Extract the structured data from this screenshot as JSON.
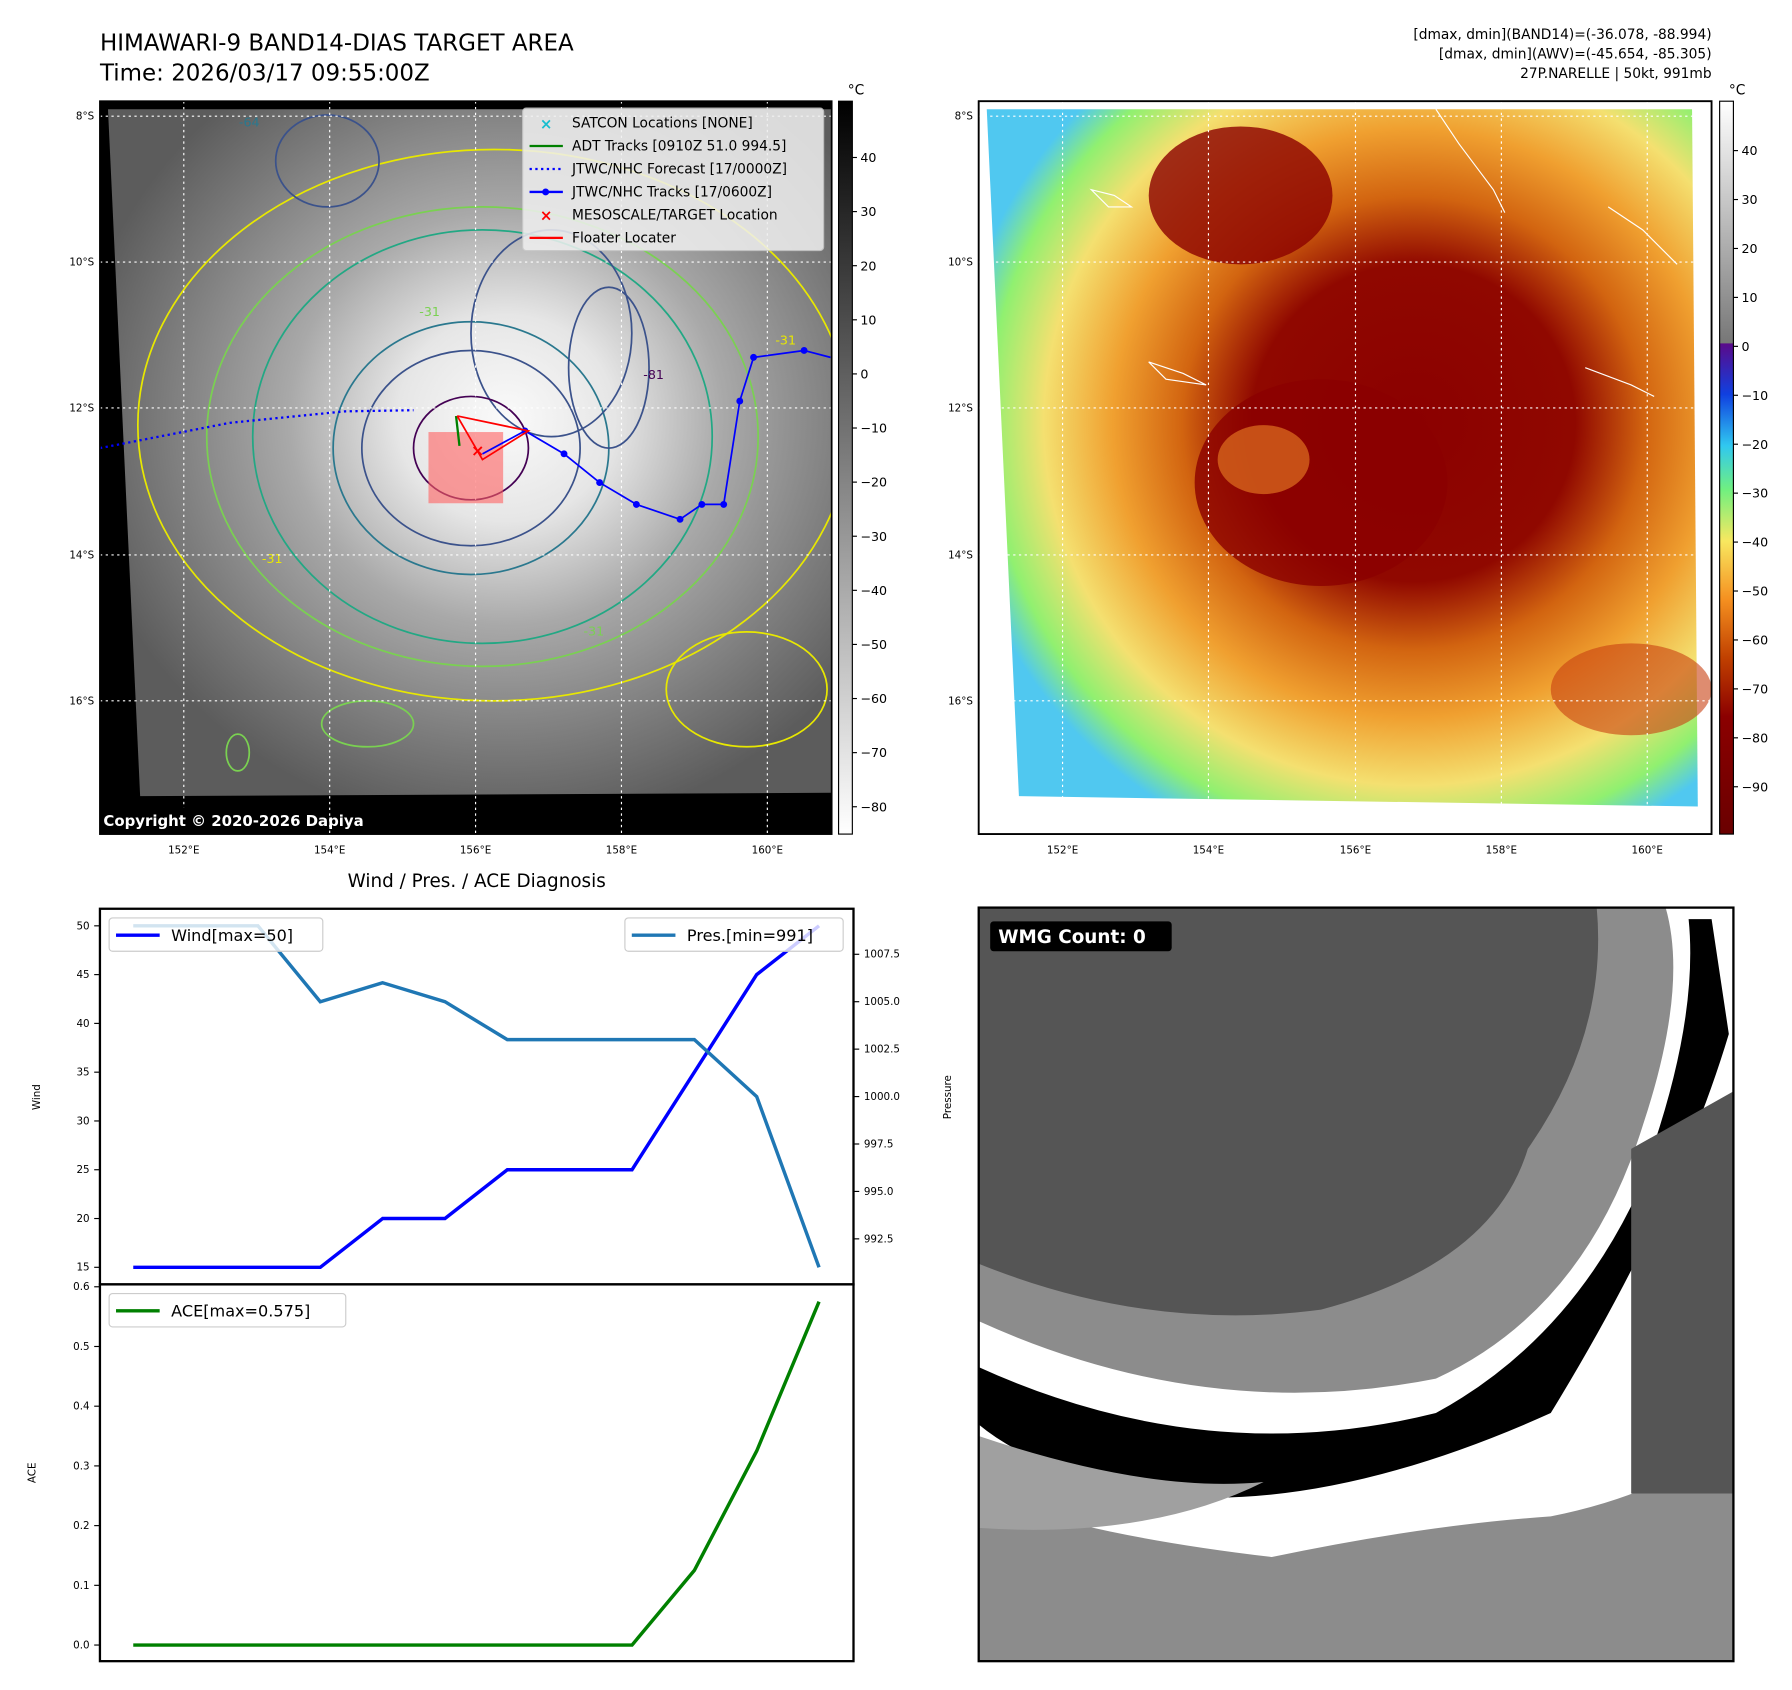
{
  "title": {
    "line1": "HIMAWARI-9 BAND14-DIAS TARGET AREA",
    "line2": "Time: 2026/03/17 09:55:00Z"
  },
  "info": {
    "line1": "[dmax, dmin](BAND14)=(-36.078, -88.994)",
    "line2": "[dmax, dmin](AWV)=(-45.654, -85.305)",
    "line3": "27P.NARELLE | 50kt, 991mb"
  },
  "map": {
    "lat_ticks": [
      "8°S",
      "10°S",
      "12°S",
      "14°S",
      "16°S"
    ],
    "lon_ticks": [
      "152°E",
      "154°E",
      "156°E",
      "158°E",
      "160°E"
    ],
    "copyright": "Copyright © 2020-2026 Dapiya",
    "contour_labels": [
      "-64",
      "-31",
      "-31",
      "-31",
      "-31",
      "-81"
    ],
    "legend": [
      {
        "label": "SATCON Locations [NONE]",
        "color": "#17becf",
        "marker": "x"
      },
      {
        "label": "ADT Tracks [0910Z 51.0 994.5]",
        "color": "#008000",
        "marker": "line"
      },
      {
        "label": "JTWC/NHC Forecast [17/0000Z]",
        "color": "#0000ff",
        "marker": "dotted"
      },
      {
        "label": "JTWC/NHC Tracks [17/0600Z]",
        "color": "#0000ff",
        "marker": "line-dot"
      },
      {
        "label": "MESOSCALE/TARGET Location",
        "color": "#ff0000",
        "marker": "x"
      },
      {
        "label": "Floater Locater",
        "color": "#ff0000",
        "marker": "line"
      }
    ]
  },
  "colorbar_left": {
    "unit": "°C",
    "ticks": [
      "40",
      "30",
      "20",
      "10",
      "0",
      "−10",
      "−20",
      "−30",
      "−40",
      "−50",
      "−60",
      "−70",
      "−80"
    ]
  },
  "colorbar_right": {
    "unit": "°C",
    "ticks": [
      "40",
      "30",
      "20",
      "10",
      "0",
      "−10",
      "−20",
      "−30",
      "−40",
      "−50",
      "−60",
      "−70",
      "−80",
      "−90"
    ]
  },
  "wmg": {
    "label": "WMG Count: 0"
  },
  "chart_data": [
    {
      "type": "line",
      "title": "Wind / Pres. / ACE Diagnosis",
      "x": [
        0,
        1,
        2,
        3,
        4,
        5,
        6,
        7,
        8,
        9,
        10,
        11
      ],
      "series": [
        {
          "name": "Wind[max=50]",
          "axis": "left",
          "color": "#0000ff",
          "values": [
            15,
            15,
            15,
            15,
            20,
            20,
            25,
            25,
            25,
            35,
            45,
            50
          ]
        },
        {
          "name": "Pres.[min=991]",
          "axis": "right",
          "color": "#1f77b4",
          "values": [
            1009,
            1009,
            1009,
            1005,
            1006,
            1005,
            1003,
            1003,
            1003,
            1003,
            1000,
            991
          ]
        }
      ],
      "ylabel": "Wind",
      "ylabel_right": "Pressure",
      "ylim": [
        13.25,
        51.75
      ],
      "ylim_right": [
        990.1,
        1009.9
      ],
      "yticks": [
        "15",
        "20",
        "25",
        "30",
        "35",
        "40",
        "45",
        "50"
      ],
      "yticks_right": [
        "992.5",
        "995.0",
        "997.5",
        "1000.0",
        "1002.5",
        "1005.0",
        "1007.5"
      ],
      "legend_left": "top-left",
      "legend_right": "top-right"
    },
    {
      "type": "line",
      "x": [
        0,
        1,
        2,
        3,
        4,
        5,
        6,
        7,
        8,
        9,
        10,
        11
      ],
      "series": [
        {
          "name": "ACE[max=0.575]",
          "color": "#008000",
          "values": [
            0,
            0,
            0,
            0,
            0,
            0,
            0,
            0,
            0,
            0.125,
            0.325,
            0.575
          ]
        }
      ],
      "ylabel": "ACE",
      "ylim": [
        -0.027,
        0.604
      ],
      "yticks": [
        "0.0",
        "0.1",
        "0.2",
        "0.3",
        "0.4",
        "0.5",
        "0.6"
      ],
      "legend": "top-left"
    }
  ]
}
